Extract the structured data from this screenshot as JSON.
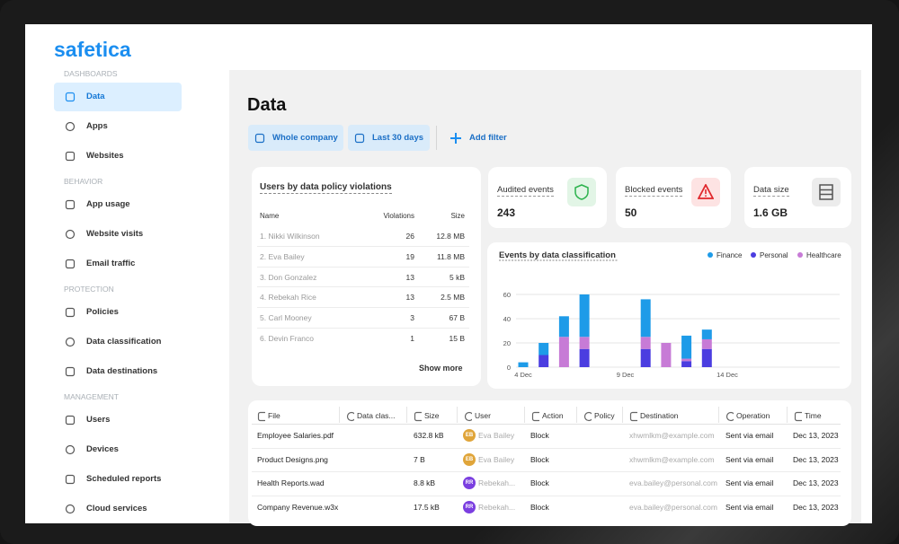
{
  "logo": "safetica",
  "sidebar": {
    "sections": [
      {
        "title": "DASHBOARDS",
        "items": [
          "Data",
          "Apps",
          "Websites"
        ]
      },
      {
        "title": "BEHAVIOR",
        "items": [
          "App usage",
          "Website visits",
          "Email traffic"
        ]
      },
      {
        "title": "PROTECTION",
        "items": [
          "Policies",
          "Data classification",
          "Data destinations"
        ]
      },
      {
        "title": "MANAGEMENT",
        "items": [
          "Users",
          "Devices",
          "Scheduled reports",
          "Cloud services"
        ]
      }
    ]
  },
  "header": {
    "title": "Data",
    "filters": [
      "Whole company",
      "Last 30 days"
    ],
    "add_filter": "Add filter"
  },
  "violations": {
    "title": "Users by data policy violations",
    "columns": [
      "Name",
      "Violations",
      "Size"
    ],
    "rows": [
      [
        "1. Nikki Wilkinson",
        26,
        "12.8 MB"
      ],
      [
        "2. Eva Bailey",
        19,
        "11.8 MB"
      ],
      [
        "3. Don Gonzalez",
        13,
        "5 kB"
      ],
      [
        "4. Rebekah Rice",
        13,
        "2.5 MB"
      ],
      [
        "5. Carl Mooney",
        3,
        "67 B"
      ],
      [
        "6. Devin Franco",
        1,
        "15 B"
      ]
    ],
    "show_more": "Show more"
  },
  "stats": [
    {
      "label": "Audited events",
      "value": 243
    },
    {
      "label": "Blocked events",
      "value": 50
    },
    {
      "label": "Data size",
      "value": "1.6 GB"
    }
  ],
  "chart_data": {
    "type": "bar",
    "stacked": true,
    "title": "Events by data classification",
    "categories": [
      "4 Dec",
      null,
      null,
      null,
      null,
      "9 Dec",
      null,
      null,
      null,
      null,
      "14 Dec",
      null,
      null,
      null,
      null,
      null
    ],
    "series": [
      {
        "name": "Finance",
        "color": "#1e9be8",
        "values": [
          4,
          10,
          17,
          35,
          0,
          0,
          31,
          0,
          19,
          8,
          0,
          0,
          0,
          0,
          0,
          0
        ]
      },
      {
        "name": "Personal",
        "color": "#4b3de0",
        "values": [
          0,
          10,
          0,
          15,
          0,
          0,
          15,
          0,
          5,
          15,
          0,
          0,
          0,
          0,
          0,
          0
        ]
      },
      {
        "name": "Healthcare",
        "color": "#c77bd6",
        "values": [
          0,
          0,
          25,
          10,
          0,
          0,
          10,
          20,
          2,
          8,
          0,
          0,
          0,
          0,
          0,
          0
        ]
      }
    ],
    "ylim": [
      0,
      65
    ],
    "yticks": [
      0,
      20,
      40,
      60
    ],
    "grid": true,
    "legend": "top-right"
  },
  "events_table": {
    "columns": [
      "File",
      "Data clas...",
      "Size",
      "User",
      "Action",
      "Policy",
      "Destination",
      "Operation",
      "Time"
    ],
    "rows": [
      {
        "file": "Employee Salaries.pdf",
        "size": "632.8 kB",
        "initials": "EB",
        "user": "Eva Bailey",
        "action": "Block",
        "destination": "xhwmlkm@example.com",
        "operation": "Sent via email",
        "time": "Dec 13, 2023"
      },
      {
        "file": "Product Designs.png",
        "size": "7 B",
        "initials": "EB",
        "user": "Eva Bailey",
        "action": "Block",
        "destination": "xhwmlkm@example.com",
        "operation": "Sent via email",
        "time": "Dec 13, 2023"
      },
      {
        "file": "Health Reports.wad",
        "size": "8.8 kB",
        "initials": "RR",
        "user": "Rebekah...",
        "action": "Block",
        "destination": "eva.bailey@personal.com",
        "operation": "Sent via email",
        "time": "Dec 13, 2023"
      },
      {
        "file": "Company Revenue.w3x",
        "size": "17.5 kB",
        "initials": "RR",
        "user": "Rebekah...",
        "action": "Block",
        "destination": "eva.bailey@personal.com",
        "operation": "Sent via email",
        "time": "Dec 13, 2023"
      }
    ]
  }
}
